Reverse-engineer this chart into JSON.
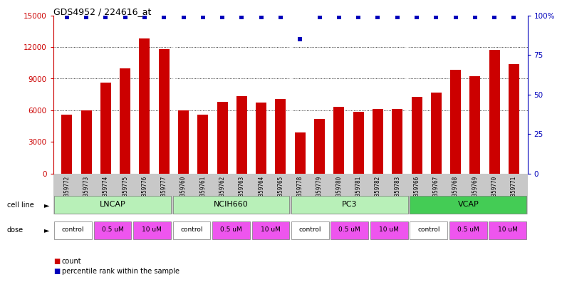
{
  "title": "GDS4952 / 224616_at",
  "samples": [
    "GSM1359772",
    "GSM1359773",
    "GSM1359774",
    "GSM1359775",
    "GSM1359776",
    "GSM1359777",
    "GSM1359760",
    "GSM1359761",
    "GSM1359762",
    "GSM1359763",
    "GSM1359764",
    "GSM1359765",
    "GSM1359778",
    "GSM1359779",
    "GSM1359780",
    "GSM1359781",
    "GSM1359782",
    "GSM1359783",
    "GSM1359766",
    "GSM1359767",
    "GSM1359768",
    "GSM1359769",
    "GSM1359770",
    "GSM1359771"
  ],
  "counts": [
    5600,
    5950,
    8650,
    10000,
    12800,
    11800,
    5950,
    5600,
    6800,
    7300,
    6750,
    7050,
    3900,
    5200,
    6300,
    5850,
    6100,
    6100,
    7250,
    7700,
    9800,
    9200,
    11700,
    10400
  ],
  "percentile_ranks": [
    99,
    99,
    99,
    99,
    99,
    99,
    99,
    99,
    99,
    99,
    99,
    99,
    85,
    99,
    99,
    99,
    99,
    99,
    99,
    99,
    99,
    99,
    99,
    99
  ],
  "cell_lines": [
    {
      "name": "LNCAP",
      "start": 0,
      "end": 6,
      "color_light": "#B8F0B8",
      "color_dark": "#88DD88"
    },
    {
      "name": "NCIH660",
      "start": 6,
      "end": 12,
      "color_light": "#B8F0B8",
      "color_dark": "#88DD88"
    },
    {
      "name": "PC3",
      "start": 12,
      "end": 18,
      "color_light": "#B8F0B8",
      "color_dark": "#88DD88"
    },
    {
      "name": "VCAP",
      "start": 18,
      "end": 24,
      "color_light": "#44CC55",
      "color_dark": "#33BB44"
    }
  ],
  "dose_groups": [
    {
      "label": "control",
      "color": "#FFFFFF"
    },
    {
      "label": "0.5 uM",
      "color": "#EE55EE"
    },
    {
      "label": "10 uM",
      "color": "#EE55EE"
    }
  ],
  "bar_color": "#CC0000",
  "dot_color": "#0000BB",
  "ylim_left": [
    0,
    15000
  ],
  "ylim_right": [
    0,
    100
  ],
  "yticks_left": [
    0,
    3000,
    6000,
    9000,
    12000,
    15000
  ],
  "yticks_right": [
    0,
    25,
    50,
    75,
    100
  ],
  "ytick_labels_right": [
    "0",
    "25",
    "50",
    "75",
    "100%"
  ],
  "grid_lines": [
    6000,
    9000,
    12000
  ],
  "separators": [
    5.5,
    11.5,
    17.5
  ]
}
